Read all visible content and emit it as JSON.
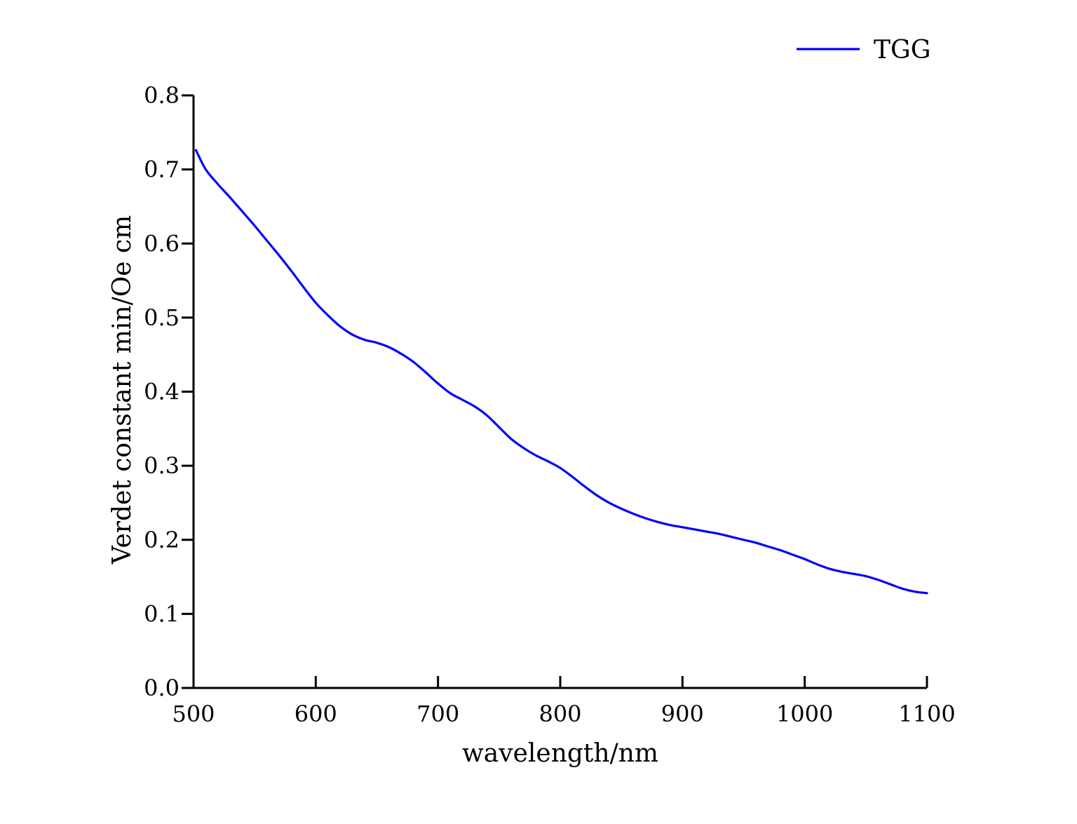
{
  "chart_data": {
    "type": "line",
    "title": "",
    "xlabel": "wavelength/nm",
    "ylabel": "Verdet constant min/Oe cm",
    "xlim": [
      500,
      1100
    ],
    "ylim": [
      0.0,
      0.8
    ],
    "xticks": [
      500,
      600,
      700,
      800,
      900,
      1000,
      1100
    ],
    "xtick_labels": [
      "500",
      "600",
      "700",
      "800",
      "900",
      "1000",
      "1100"
    ],
    "yticks": [
      0.0,
      0.1,
      0.2,
      0.3,
      0.4,
      0.5,
      0.6,
      0.7,
      0.8
    ],
    "ytick_labels": [
      "0.0",
      "0.1",
      "0.2",
      "0.3",
      "0.4",
      "0.5",
      "0.6",
      "0.7",
      "0.8"
    ],
    "grid": false,
    "legend_position": "top-right",
    "series": [
      {
        "name": "TGG",
        "color": "#0000ff",
        "x": [
          502,
          510,
          520,
          530,
          540,
          550,
          560,
          570,
          580,
          590,
          600,
          610,
          620,
          630,
          640,
          650,
          660,
          670,
          680,
          690,
          700,
          710,
          720,
          730,
          740,
          750,
          760,
          770,
          780,
          790,
          800,
          810,
          820,
          830,
          840,
          850,
          860,
          870,
          880,
          890,
          900,
          910,
          920,
          930,
          940,
          950,
          960,
          970,
          980,
          990,
          1000,
          1010,
          1020,
          1030,
          1040,
          1050,
          1060,
          1070,
          1080,
          1090,
          1100
        ],
        "y": [
          0.726,
          0.7,
          0.68,
          0.662,
          0.643,
          0.624,
          0.604,
          0.584,
          0.563,
          0.541,
          0.52,
          0.503,
          0.488,
          0.477,
          0.47,
          0.466,
          0.46,
          0.451,
          0.44,
          0.426,
          0.411,
          0.398,
          0.389,
          0.38,
          0.368,
          0.352,
          0.336,
          0.324,
          0.314,
          0.306,
          0.297,
          0.285,
          0.272,
          0.26,
          0.25,
          0.242,
          0.235,
          0.229,
          0.224,
          0.22,
          0.217,
          0.214,
          0.211,
          0.208,
          0.204,
          0.2,
          0.196,
          0.191,
          0.186,
          0.18,
          0.174,
          0.167,
          0.161,
          0.157,
          0.154,
          0.151,
          0.146,
          0.14,
          0.134,
          0.13,
          0.128
        ]
      }
    ]
  }
}
